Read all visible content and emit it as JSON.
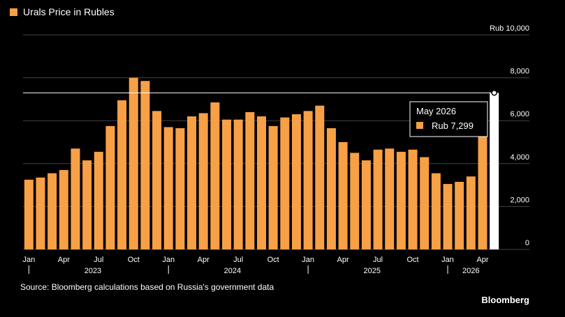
{
  "colors": {
    "bar": "#F7A046",
    "bar_highlight": "#FFFFFF",
    "grid": "#444444",
    "background": "#000000"
  },
  "chart_data": {
    "type": "bar",
    "legend": "Urals Price in Rubles",
    "legend_position": "top-left",
    "grid": true,
    "ylim": [
      0,
      10000
    ],
    "y_ticks": [
      {
        "value": 0,
        "label": "0"
      },
      {
        "value": 2000,
        "label": "2,000"
      },
      {
        "value": 4000,
        "label": "4,000"
      },
      {
        "value": 6000,
        "label": "6,000"
      },
      {
        "value": 8000,
        "label": "8,000"
      },
      {
        "value": 10000,
        "label": "Rub 10,000"
      }
    ],
    "month_ticks": [
      {
        "index": 0,
        "label": "Jan"
      },
      {
        "index": 3,
        "label": "Apr"
      },
      {
        "index": 6,
        "label": "Jul"
      },
      {
        "index": 9,
        "label": "Oct"
      },
      {
        "index": 12,
        "label": "Jan"
      },
      {
        "index": 15,
        "label": "Apr"
      },
      {
        "index": 18,
        "label": "Jul"
      },
      {
        "index": 21,
        "label": "Oct"
      },
      {
        "index": 24,
        "label": "Jan"
      },
      {
        "index": 27,
        "label": "Apr"
      },
      {
        "index": 30,
        "label": "Jul"
      },
      {
        "index": 33,
        "label": "Oct"
      },
      {
        "index": 36,
        "label": "Jan"
      },
      {
        "index": 39,
        "label": "Apr"
      }
    ],
    "year_ticks": [
      {
        "start": 0,
        "end": 11,
        "label": "2023"
      },
      {
        "start": 12,
        "end": 23,
        "label": "2024"
      },
      {
        "start": 24,
        "end": 35,
        "label": "2025"
      },
      {
        "start": 36,
        "end": 40,
        "label": "2026"
      }
    ],
    "categories": [
      "Jan 2023",
      "Feb 2023",
      "Mar 2023",
      "Apr 2023",
      "May 2023",
      "Jun 2023",
      "Jul 2023",
      "Aug 2023",
      "Sep 2023",
      "Oct 2023",
      "Nov 2023",
      "Dec 2023",
      "Jan 2024",
      "Feb 2024",
      "Mar 2024",
      "Apr 2024",
      "May 2024",
      "Jun 2024",
      "Jul 2024",
      "Aug 2024",
      "Sep 2024",
      "Oct 2024",
      "Nov 2024",
      "Dec 2024",
      "Jan 2025",
      "Feb 2025",
      "Mar 2025",
      "Apr 2025",
      "May 2025",
      "Jun 2025",
      "Jul 2025",
      "Aug 2025",
      "Sep 2025",
      "Oct 2025",
      "Nov 2025",
      "Dec 2025",
      "Jan 2026",
      "Feb 2026",
      "Mar 2026",
      "Apr 2026",
      "May 2026"
    ],
    "values": [
      3250,
      3350,
      3550,
      3700,
      4700,
      4150,
      4550,
      5750,
      6950,
      8000,
      7850,
      6450,
      5700,
      5650,
      6200,
      6350,
      6850,
      6050,
      6050,
      6400,
      6200,
      5750,
      6150,
      6300,
      6450,
      6700,
      5650,
      5000,
      4500,
      4150,
      4650,
      4700,
      4550,
      4650,
      4300,
      3550,
      3050,
      3150,
      3400,
      5300,
      7299
    ],
    "highlight": {
      "index": 40,
      "label": "May 2026",
      "value_label": "Rub 7,299",
      "value": 7299
    }
  },
  "source": "Source: Bloomberg calculations based on Russia's government data",
  "brand": "Bloomberg"
}
